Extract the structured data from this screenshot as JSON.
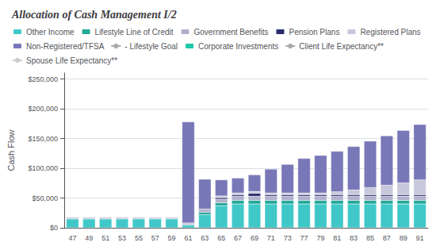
{
  "chart_data": {
    "type": "bar",
    "title": "Allocation of Cash Management I/2",
    "ylabel": "Cash Flow",
    "stacked": true,
    "grid": true,
    "legend": "upper left",
    "categories": [
      47,
      49,
      51,
      53,
      55,
      57,
      59,
      61,
      63,
      65,
      67,
      69,
      71,
      73,
      77,
      79,
      81,
      83,
      85,
      87,
      89,
      91
    ],
    "ylim": [
      0,
      260000
    ],
    "yticks": [
      {
        "value": 0,
        "label": "$0"
      },
      {
        "value": 50000,
        "label": "$50,000"
      },
      {
        "value": 100000,
        "label": "$100,000"
      },
      {
        "value": 150000,
        "label": "$150,000"
      },
      {
        "value": 200000,
        "label": "$200,000"
      },
      {
        "value": 250000,
        "label": "$250,000"
      }
    ],
    "series": [
      {
        "name": "Other Income",
        "color": "#40c8c8",
        "values": [
          15000,
          15000,
          15000,
          15000,
          15000,
          15000,
          15000,
          5000,
          22000,
          37000,
          40000,
          40000,
          40000,
          40000,
          40000,
          40000,
          40000,
          40000,
          40000,
          40000,
          40000,
          40000
        ]
      },
      {
        "name": "Lifestyle Line of Credit",
        "color": "#20a898",
        "values": [
          0,
          0,
          0,
          0,
          0,
          0,
          0,
          0,
          4000,
          5000,
          6000,
          6000,
          6000,
          6000,
          6000,
          6000,
          6000,
          6000,
          6000,
          6000,
          6000,
          6000
        ]
      },
      {
        "name": "Government Benefits",
        "color": "#b0b0cc",
        "values": [
          2000,
          2000,
          2000,
          2000,
          2000,
          2000,
          2000,
          2000,
          4000,
          6000,
          7000,
          7000,
          7000,
          7000,
          7000,
          7000,
          7000,
          7000,
          7000,
          7000,
          7000,
          7000
        ]
      },
      {
        "name": "Pension Plans",
        "color": "#2a2a70",
        "values": [
          1000,
          1000,
          1000,
          1000,
          1000,
          1000,
          1000,
          1000,
          1500,
          2500,
          2500,
          5000,
          2500,
          2500,
          2500,
          2500,
          2500,
          2500,
          2500,
          2500,
          2500,
          2500
        ]
      },
      {
        "name": "Registered Plans",
        "color": "#c8c8dc",
        "values": [
          0,
          0,
          0,
          0,
          0,
          0,
          0,
          0,
          0,
          3000,
          3000,
          3000,
          3000,
          3000,
          3000,
          3000,
          5000,
          8000,
          12000,
          16000,
          20000,
          25000
        ]
      },
      {
        "name": "Non-Registered/TFSA",
        "color": "#7878b8",
        "values": [
          0,
          0,
          0,
          0,
          0,
          0,
          0,
          170000,
          50000,
          27000,
          25000,
          28000,
          40000,
          48000,
          58000,
          63000,
          68000,
          73000,
          78000,
          83000,
          88000,
          93000
        ]
      },
      {
        "name": "- Lifestyle Goal",
        "color": "#aaaaaa",
        "type": "line",
        "values": [
          null,
          null,
          null,
          null,
          null,
          null,
          null,
          null,
          null,
          null,
          null,
          null,
          null,
          null,
          null,
          null,
          null,
          null,
          null,
          null,
          null,
          null
        ]
      },
      {
        "name": "Corporate Investments",
        "color": "#20c8a8",
        "values": [
          null,
          null,
          null,
          null,
          null,
          null,
          null,
          null,
          null,
          null,
          null,
          null,
          null,
          null,
          null,
          null,
          null,
          null,
          null,
          null,
          null,
          null
        ]
      },
      {
        "name": "Client Life Expectancy**",
        "color": "#aaaaaa",
        "type": "line",
        "values": [
          null,
          null,
          null,
          null,
          null,
          null,
          null,
          null,
          null,
          null,
          null,
          null,
          null,
          null,
          null,
          null,
          null,
          null,
          null,
          null,
          null,
          null
        ]
      },
      {
        "name": "Spouse Life Expectancy**",
        "color": "#cccccc",
        "type": "line",
        "values": [
          null,
          null,
          null,
          null,
          null,
          null,
          null,
          null,
          null,
          null,
          null,
          null,
          null,
          null,
          null,
          null,
          null,
          null,
          null,
          null,
          null,
          null
        ]
      }
    ]
  }
}
